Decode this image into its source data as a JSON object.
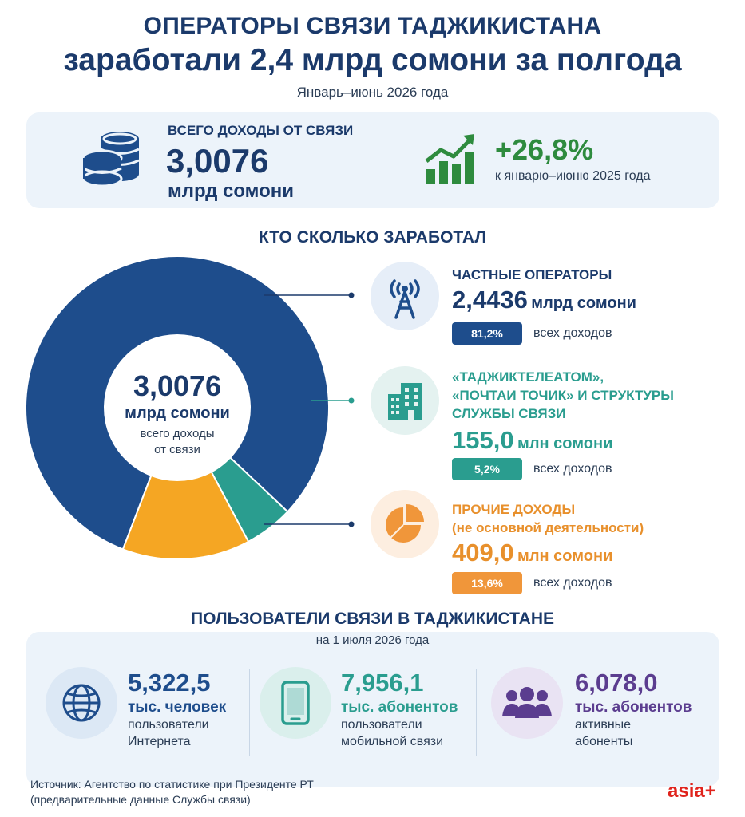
{
  "header": {
    "title_line1": "ОПЕРАТОРЫ СВЯЗИ ТАДЖИКИСТАНА",
    "title_line2": "заработали 2,4 млрд сомони за полгода",
    "period": "Январь–июнь 2026 года"
  },
  "summary": {
    "total_label": "ВСЕГО ДОХОДЫ ОТ СВЯЗИ",
    "total_value": "3,0076",
    "total_unit": "млрд сомони",
    "growth_value": "+26,8%",
    "growth_note": "к январю–июню 2025 года"
  },
  "section_who": "КТО СКОЛЬКО ЗАРАБОТАЛ",
  "chart_data": {
    "type": "pie",
    "center_value": "3,0076",
    "center_unit": "млрд сомони",
    "center_caption_line1": "всего доходы",
    "center_caption_line2": "от связи",
    "slices": [
      {
        "label": "ЧАСТНЫЕ ОПЕРАТОРЫ",
        "value_text": "2,4436",
        "unit": "млрд сомони",
        "percent": 81.2,
        "percent_text": "81,2%",
        "note": "всех доходов",
        "color": "#1e4d8c"
      },
      {
        "label_line1": "«ТАДЖИКТЕЛЕАТОМ»,",
        "label_line2": "«ПОЧТАИ ТОЧИК» И СТРУКТУРЫ",
        "label_line3": "СЛУЖБЫ СВЯЗИ",
        "value_text": "155,0",
        "unit": "млн сомони",
        "percent": 5.2,
        "percent_text": "5,2%",
        "note": "всех доходов",
        "color": "#2a9d8f"
      },
      {
        "label_line1": "ПРОЧИЕ ДОХОДЫ",
        "label_line2": "(не основной деятельности)",
        "value_text": "409,0",
        "unit": "млн сомони",
        "percent": 13.6,
        "percent_text": "13,6%",
        "note": "всех доходов",
        "color": "#f5a623"
      }
    ]
  },
  "users": {
    "title": "ПОЛЬЗОВАТЕЛИ СВЯЗИ В ТАДЖИКИСТАНЕ",
    "date": "на 1 июля 2026 года",
    "items": [
      {
        "value": "5,322,5",
        "unit": "тыс. человек",
        "desc_line1": "пользователи",
        "desc_line2": "Интернета",
        "icon": "globe-icon",
        "color": "#1e4d8c"
      },
      {
        "value": "7,956,1",
        "unit": "тыс. абонентов",
        "desc_line1": "пользователи",
        "desc_line2": "мобильной связи",
        "icon": "smartphone-icon",
        "color": "#2a9d8f"
      },
      {
        "value": "6,078,0",
        "unit": "тыс. абонентов",
        "desc_line1": "активные",
        "desc_line2": "абоненты",
        "icon": "people-icon",
        "color": "#5b3d8f"
      }
    ]
  },
  "footer": {
    "source_line1": "Источник: Агентство по статистике при Президенте РТ",
    "source_line2": "(предварительные данные Службы связи)",
    "brand": "asia+"
  }
}
